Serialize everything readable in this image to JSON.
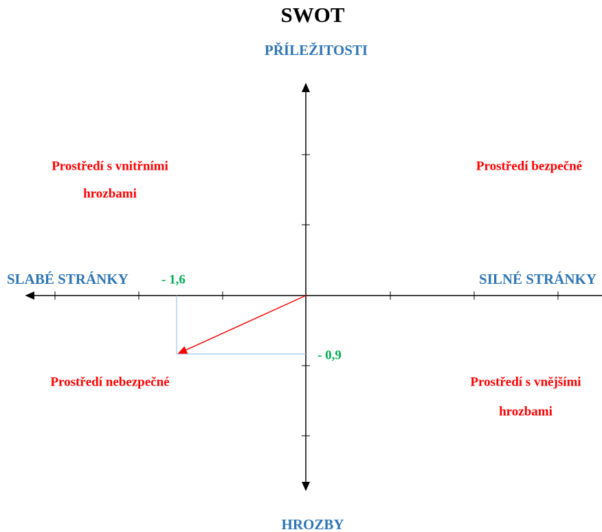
{
  "title": "SWOT",
  "axes": {
    "top": "PŘÍLEŽITOSTI",
    "bottom": "HROZBY",
    "left": "SLABÉ STRÁNKY",
    "right": "SILNÉ STRÁNKY"
  },
  "point_labels": {
    "x": "- 1,6",
    "y": "- 0,9"
  },
  "quadrants": {
    "top_left": [
      "Prostředí s vnitřními",
      "hrozbami"
    ],
    "top_right": [
      "Prostředí bezpečné"
    ],
    "bottom_left": [
      "Prostředí nebezpečné"
    ],
    "bottom_right": [
      "Prostředí s vnějšími",
      "hrozbami"
    ]
  }
}
